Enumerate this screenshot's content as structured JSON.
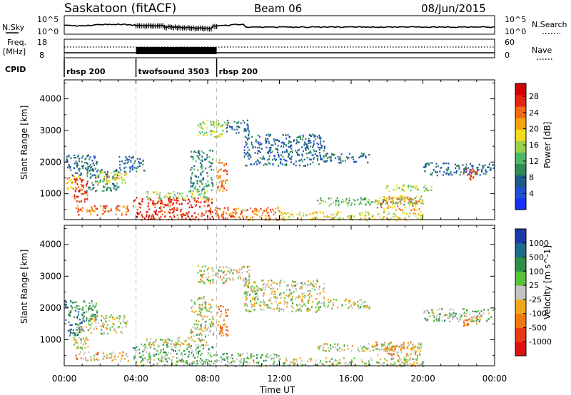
{
  "header": {
    "station": "Saskatoon (fitACF)",
    "beam": "Beam 06",
    "date": "08/Jun/2015"
  },
  "status": {
    "nsky_label": "N.Sky",
    "nsearch_label": "N.Search",
    "freq_label": "Freq.",
    "freq_unit": "[MHz]",
    "nave_label": "Nave",
    "cpid_label": "CPID",
    "nsky_ticks": [
      "10^5",
      "10^0"
    ],
    "nsearch_ticks": [
      "10^5",
      "10^0"
    ],
    "freq_ticks": [
      "18",
      "8"
    ],
    "nave_ticks": [
      "60",
      "0"
    ]
  },
  "chart_data": [
    {
      "type": "line",
      "title": "Saskatoon (fitACF) Beam 06 08/Jun/2015",
      "panel": "status",
      "cpid_segments": [
        {
          "label": "rbsp 200",
          "start": 0,
          "end": 4
        },
        {
          "label": "twofsound 3503",
          "start": 4,
          "end": 8.5
        },
        {
          "label": "rbsp 200",
          "start": 8.5,
          "end": 24
        }
      ],
      "dense_band_hours": [
        4.0,
        8.5
      ]
    },
    {
      "type": "heatmap",
      "panel": "power",
      "xlabel": "Time UT",
      "ylabel": "Slant Range [km]",
      "ylim": [
        180,
        4600
      ],
      "xlim": [
        0,
        24
      ],
      "y_ticks": [
        1000,
        2000,
        3000,
        4000
      ],
      "x_ticks": [
        "00:00",
        "04:00",
        "08:00",
        "12:00",
        "16:00",
        "20:00",
        "00:00"
      ],
      "colorbar_label": "Power [dB]",
      "colorbar_ticks": [
        "4",
        "8",
        "12",
        "16",
        "20",
        "24",
        "28"
      ],
      "colorbar_colors": [
        "#1530ff",
        "#2250d0",
        "#1d5a8a",
        "#2f8a55",
        "#4cb86b",
        "#9ad04a",
        "#f0dc18",
        "#f5a30e",
        "#f06a10",
        "#e82212",
        "#d20000"
      ],
      "bands": [
        {
          "t0": 0.1,
          "t1": 0.9,
          "r0": 1150,
          "r1": 1650,
          "v": 20
        },
        {
          "t0": 0.5,
          "t1": 1.3,
          "r0": 700,
          "r1": 1500,
          "v": 26
        },
        {
          "t0": 0.0,
          "t1": 1.8,
          "r0": 1600,
          "r1": 2250,
          "v": 8
        },
        {
          "t0": 1.2,
          "t1": 3.0,
          "r0": 1100,
          "r1": 1800,
          "v": 10
        },
        {
          "t0": 1.8,
          "t1": 3.5,
          "r0": 1350,
          "r1": 1700,
          "v": 18
        },
        {
          "t0": 0.6,
          "t1": 3.6,
          "r0": 350,
          "r1": 650,
          "v": 22
        },
        {
          "t0": 3.0,
          "t1": 4.5,
          "r0": 1700,
          "r1": 2200,
          "v": 8
        },
        {
          "t0": 3.8,
          "t1": 8.3,
          "r0": 200,
          "r1": 900,
          "v": 26
        },
        {
          "t0": 4.5,
          "t1": 8.0,
          "r0": 850,
          "r1": 1100,
          "v": 14
        },
        {
          "t0": 7.0,
          "t1": 8.3,
          "r0": 1100,
          "r1": 2400,
          "v": 10
        },
        {
          "t0": 7.4,
          "t1": 9.0,
          "r0": 2800,
          "r1": 3350,
          "v": 14
        },
        {
          "t0": 8.5,
          "t1": 9.1,
          "r0": 1100,
          "r1": 2100,
          "v": 24
        },
        {
          "t0": 8.3,
          "t1": 12.0,
          "r0": 180,
          "r1": 600,
          "v": 24
        },
        {
          "t0": 9.0,
          "t1": 10.3,
          "r0": 2900,
          "r1": 3350,
          "v": 8
        },
        {
          "t0": 10.0,
          "t1": 14.5,
          "r0": 1900,
          "r1": 2900,
          "v": 8
        },
        {
          "t0": 12.0,
          "t1": 20.0,
          "r0": 180,
          "r1": 450,
          "v": 18
        },
        {
          "t0": 14.0,
          "t1": 20.0,
          "r0": 650,
          "r1": 900,
          "v": 12
        },
        {
          "t0": 17.3,
          "t1": 20.0,
          "r0": 500,
          "r1": 950,
          "v": 20
        },
        {
          "t0": 14.5,
          "t1": 17.0,
          "r0": 2000,
          "r1": 2300,
          "v": 8
        },
        {
          "t0": 17.8,
          "t1": 20.5,
          "r0": 1100,
          "r1": 1300,
          "v": 14
        },
        {
          "t0": 20.0,
          "t1": 24.0,
          "r0": 1600,
          "r1": 2000,
          "v": 8
        },
        {
          "t0": 22.2,
          "t1": 23.0,
          "r0": 1450,
          "r1": 1800,
          "v": 26
        }
      ]
    },
    {
      "type": "heatmap",
      "panel": "velocity",
      "xlabel": "Time UT",
      "ylabel": "Slant Range [km]",
      "ylim": [
        180,
        4600
      ],
      "xlim": [
        0,
        24
      ],
      "y_ticks": [
        1000,
        2000,
        3000,
        4000
      ],
      "x_ticks": [
        "00:00",
        "04:00",
        "08:00",
        "12:00",
        "16:00",
        "20:00",
        "00:00"
      ],
      "colorbar_label": "Velocity [m s^-1]",
      "colorbar_ticks": [
        "1000",
        "500",
        "100",
        "25",
        "-25",
        "-100",
        "-500",
        "-1000"
      ],
      "colorbar_colors": [
        "#1a3aa8",
        "#1e6a8a",
        "#2e8f48",
        "#58c23a",
        "#c4c4c4",
        "#f2a818",
        "#ee7a0e",
        "#ea3a14",
        "#e01010"
      ],
      "bands": [
        {
          "t0": 0.1,
          "t1": 1.0,
          "r0": 1150,
          "r1": 1650,
          "v": 1
        },
        {
          "t0": 0.5,
          "t1": 1.3,
          "r0": 700,
          "r1": 1500,
          "v": 4
        },
        {
          "t0": 1.3,
          "t1": 3.5,
          "r0": 1200,
          "r1": 1800,
          "v": 4
        },
        {
          "t0": 0.0,
          "t1": 1.8,
          "r0": 1600,
          "r1": 2250,
          "v": 2
        },
        {
          "t0": 0.6,
          "t1": 3.6,
          "r0": 350,
          "r1": 650,
          "v": 5
        },
        {
          "t0": 3.8,
          "t1": 8.3,
          "r0": 200,
          "r1": 900,
          "v": 3
        },
        {
          "t0": 4.5,
          "t1": 8.0,
          "r0": 850,
          "r1": 1100,
          "v": 4
        },
        {
          "t0": 7.0,
          "t1": 8.3,
          "r0": 1100,
          "r1": 2400,
          "v": 4
        },
        {
          "t0": 7.4,
          "t1": 10.3,
          "r0": 2800,
          "r1": 3350,
          "v": 4
        },
        {
          "t0": 8.5,
          "t1": 9.1,
          "r0": 1100,
          "r1": 2100,
          "v": 6
        },
        {
          "t0": 8.3,
          "t1": 12.0,
          "r0": 180,
          "r1": 600,
          "v": 3
        },
        {
          "t0": 10.0,
          "t1": 14.5,
          "r0": 1900,
          "r1": 2900,
          "v": 4
        },
        {
          "t0": 12.0,
          "t1": 20.0,
          "r0": 180,
          "r1": 450,
          "v": 4
        },
        {
          "t0": 14.0,
          "t1": 20.0,
          "r0": 650,
          "r1": 900,
          "v": 4
        },
        {
          "t0": 17.3,
          "t1": 20.0,
          "r0": 500,
          "r1": 950,
          "v": 5
        },
        {
          "t0": 14.5,
          "t1": 17.0,
          "r0": 2000,
          "r1": 2300,
          "v": 4
        },
        {
          "t0": 20.0,
          "t1": 24.0,
          "r0": 1600,
          "r1": 2000,
          "v": 3
        },
        {
          "t0": 22.2,
          "t1": 23.0,
          "r0": 1450,
          "r1": 1800,
          "v": 6
        }
      ]
    }
  ]
}
